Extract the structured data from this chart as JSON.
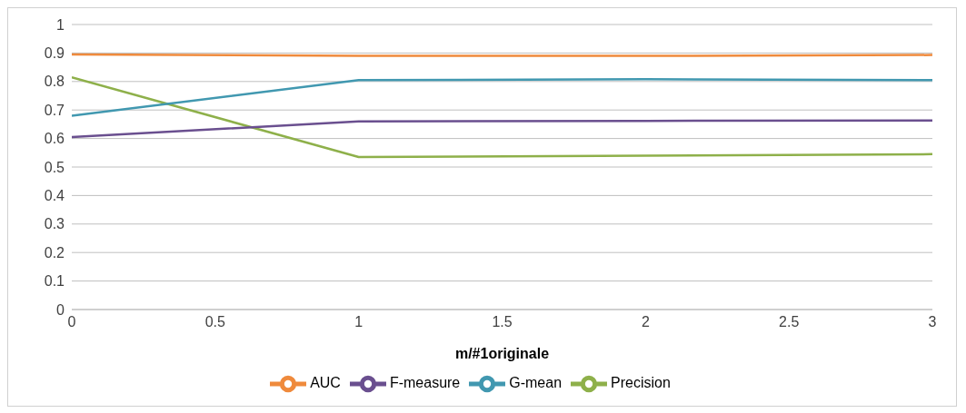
{
  "chart_data": {
    "type": "line",
    "xlabel": "m/#1originale",
    "x": [
      0,
      1,
      2,
      3
    ],
    "series": [
      {
        "name": "Precision",
        "color": "#8eb04a",
        "values": [
          0.815,
          0.535,
          0.54,
          0.545
        ]
      },
      {
        "name": "F-measure",
        "color": "#6a4f8f",
        "values": [
          0.605,
          0.66,
          0.662,
          0.663
        ]
      },
      {
        "name": "G-mean",
        "color": "#4198b0",
        "values": [
          0.68,
          0.805,
          0.808,
          0.805
        ]
      },
      {
        "name": "AUC",
        "color": "#ef8a3c",
        "values": [
          0.895,
          0.89,
          0.89,
          0.893
        ]
      }
    ],
    "xlim": [
      0,
      3
    ],
    "xticks": [
      0,
      0.5,
      1,
      1.5,
      2,
      2.5,
      3
    ],
    "ylim": [
      0,
      1
    ],
    "yticks": [
      0,
      0.1,
      0.2,
      0.3,
      0.4,
      0.5,
      0.6,
      0.7,
      0.8,
      0.9,
      1
    ],
    "grid": "y",
    "legend": "bottom",
    "marker": "none",
    "line_style": "solid"
  }
}
